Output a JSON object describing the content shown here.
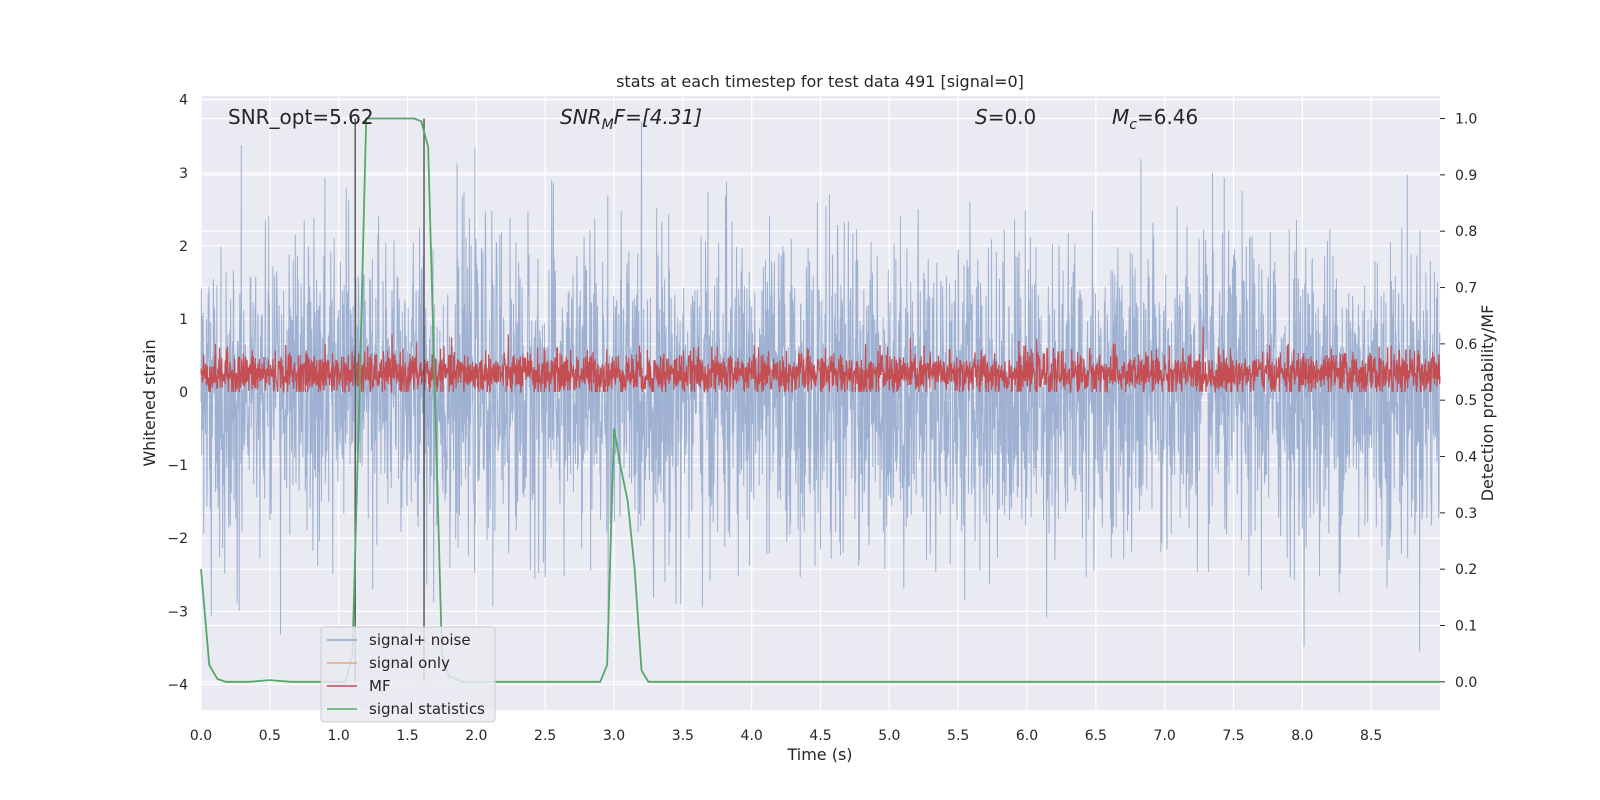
{
  "chart_data": {
    "type": "line",
    "title": "stats at each timestep for test data 491 [signal=0]",
    "xlabel": "Time (s)",
    "ylabel_left": "Whitened strain",
    "ylabel_right": "Detection probability/MF",
    "xlim": [
      0,
      9.0
    ],
    "ylim_left": [
      -4.35,
      4.05
    ],
    "ylim_right": [
      -0.05,
      1.04
    ],
    "x_ticks": [
      "0.0",
      "0.5",
      "1.0",
      "1.5",
      "2.0",
      "2.5",
      "3.0",
      "3.5",
      "4.0",
      "4.5",
      "5.0",
      "5.5",
      "6.0",
      "6.5",
      "7.0",
      "7.5",
      "8.0",
      "8.5"
    ],
    "y_ticks_left": [
      "4",
      "3",
      "2",
      "1",
      "0",
      "−1",
      "−2",
      "−3",
      "−4"
    ],
    "y_ticks_right": [
      "1.0",
      "0.9",
      "0.8",
      "0.7",
      "0.6",
      "0.5",
      "0.4",
      "0.3",
      "0.2",
      "0.1",
      "0.0"
    ],
    "annotations": {
      "snr_opt": "SNR_opt=5.62",
      "snr_mf_main": "SNR",
      "snr_mf_sub": "M",
      "snr_mf_rest": "F=[4.31]",
      "s": "S",
      "s_rest": "=0.0",
      "mc_main": "M",
      "mc_sub": "c",
      "mc_rest": "=6.46"
    },
    "vertical_lines": [
      1.12,
      1.62
    ],
    "legend": {
      "position": "lower-left",
      "entries": [
        {
          "label": "signal+ noise",
          "color": "#8fa6cd"
        },
        {
          "label": "signal only",
          "color": "#e8a488"
        },
        {
          "label": "MF",
          "color": "#c44e52"
        },
        {
          "label": "signal statistics",
          "color": "#55a868"
        }
      ]
    },
    "series": [
      {
        "name": "signal+ noise",
        "axis": "left",
        "color": "#9aaed0",
        "description_stats": {
          "mean": 0,
          "std": 1.0,
          "min": -4.0,
          "max": 3.7
        }
      },
      {
        "name": "MF",
        "axis": "left",
        "color": "#c44e52",
        "description_stats": {
          "baseline": 0.25,
          "min": 0.0,
          "max": 1.0
        }
      },
      {
        "name": "signal statistics",
        "axis": "right",
        "color": "#55a868",
        "x": [
          0.0,
          0.06,
          0.12,
          0.18,
          0.25,
          0.35,
          0.5,
          0.65,
          0.8,
          1.0,
          1.05,
          1.1,
          1.15,
          1.2,
          1.3,
          1.4,
          1.5,
          1.55,
          1.6,
          1.65,
          1.7,
          1.75,
          1.8,
          1.9,
          2.0,
          2.5,
          2.9,
          2.95,
          3.0,
          3.05,
          3.1,
          3.15,
          3.2,
          3.25,
          3.3,
          3.5,
          4.0,
          5.0,
          6.0,
          7.0,
          8.0,
          9.0
        ],
        "values": [
          0.2,
          0.03,
          0.005,
          0.0,
          0.0,
          0.0,
          0.003,
          0.0,
          0.0,
          0.0,
          0.0,
          0.05,
          0.5,
          1.0,
          1.0,
          1.0,
          1.0,
          1.0,
          0.995,
          0.95,
          0.5,
          0.05,
          0.01,
          0.0,
          0.0,
          0.0,
          0.0,
          0.03,
          0.45,
          0.38,
          0.32,
          0.2,
          0.02,
          0.0,
          0.0,
          0.0,
          0.0,
          0.0,
          0.0,
          0.0,
          0.0,
          0.0
        ]
      }
    ]
  }
}
